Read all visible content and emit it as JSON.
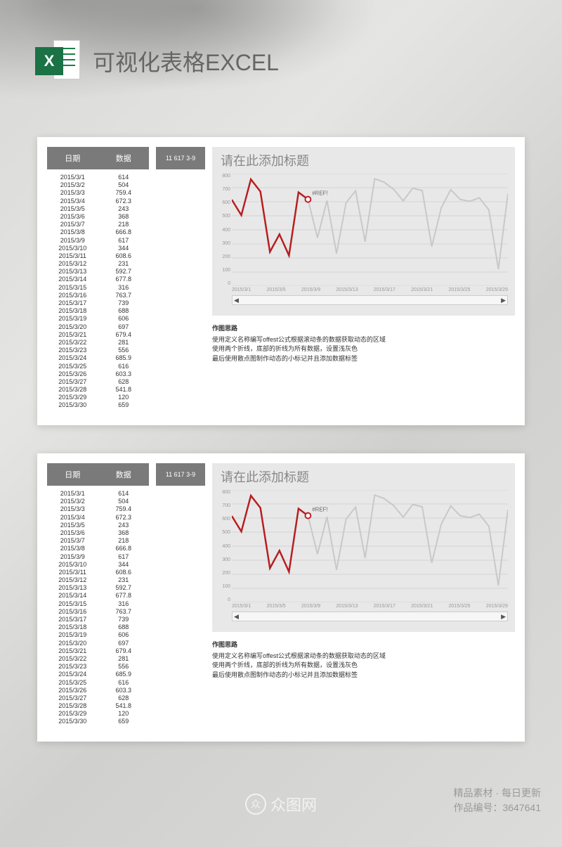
{
  "page_title": "可视化表格EXCEL",
  "excel_icon_letter": "X",
  "table": {
    "headers": {
      "date": "日期",
      "value": "数据"
    },
    "rows": [
      {
        "date": "2015/3/1",
        "value": "614"
      },
      {
        "date": "2015/3/2",
        "value": "504"
      },
      {
        "date": "2015/3/3",
        "value": "759.4"
      },
      {
        "date": "2015/3/4",
        "value": "672.3"
      },
      {
        "date": "2015/3/5",
        "value": "243"
      },
      {
        "date": "2015/3/6",
        "value": "368"
      },
      {
        "date": "2015/3/7",
        "value": "218"
      },
      {
        "date": "2015/3/8",
        "value": "666.8"
      },
      {
        "date": "2015/3/9",
        "value": "617"
      },
      {
        "date": "2015/3/10",
        "value": "344"
      },
      {
        "date": "2015/3/11",
        "value": "608.6"
      },
      {
        "date": "2015/3/12",
        "value": "231"
      },
      {
        "date": "2015/3/13",
        "value": "592.7"
      },
      {
        "date": "2015/3/14",
        "value": "677.8"
      },
      {
        "date": "2015/3/15",
        "value": "316"
      },
      {
        "date": "2015/3/16",
        "value": "763.7"
      },
      {
        "date": "2015/3/17",
        "value": "739"
      },
      {
        "date": "2015/3/18",
        "value": "688"
      },
      {
        "date": "2015/3/19",
        "value": "606"
      },
      {
        "date": "2015/3/20",
        "value": "697"
      },
      {
        "date": "2015/3/21",
        "value": "679.4"
      },
      {
        "date": "2015/3/22",
        "value": "281"
      },
      {
        "date": "2015/3/23",
        "value": "556"
      },
      {
        "date": "2015/3/24",
        "value": "685.9"
      },
      {
        "date": "2015/3/25",
        "value": "616"
      },
      {
        "date": "2015/3/26",
        "value": "603.3"
      },
      {
        "date": "2015/3/27",
        "value": "628"
      },
      {
        "date": "2015/3/28",
        "value": "541.8"
      },
      {
        "date": "2015/3/29",
        "value": "120"
      },
      {
        "date": "2015/3/30",
        "value": "659"
      }
    ]
  },
  "info_badge": "11  617  3-9",
  "chart": {
    "title": "请在此添加标题",
    "type": "line",
    "lines": {
      "highlight": {
        "color": "#b81d1f",
        "width": 2.5,
        "range_end_index": 8
      },
      "background": {
        "color": "#c8c8c8",
        "width": 2
      }
    },
    "marker": {
      "label": "#REF!",
      "index": 8,
      "fill": "#ffffff",
      "stroke": "#b81d1f",
      "radius": 4
    },
    "background_color": "#e8e8e8",
    "grid_color": "#d4d4d4",
    "ylim": [
      0,
      800
    ],
    "ytick_step": 100,
    "yticks": [
      "800",
      "700",
      "600",
      "500",
      "400",
      "300",
      "200",
      "100",
      "0"
    ],
    "xticks": [
      "2015/3/1",
      "2015/3/5",
      "2015/3/9",
      "2015/3/13",
      "2015/3/17",
      "2015/3/21",
      "2015/3/25",
      "2015/3/29"
    ],
    "label_fontsize": 7,
    "label_color": "#999999",
    "title_fontsize": 18,
    "title_color": "#888888",
    "values": [
      614,
      504,
      759.4,
      672.3,
      243,
      368,
      218,
      666.8,
      617,
      344,
      608.6,
      231,
      592.7,
      677.8,
      316,
      763.7,
      739,
      688,
      606,
      697,
      679.4,
      281,
      556,
      685.9,
      616,
      603.3,
      628,
      541.8,
      120,
      659
    ]
  },
  "notes": {
    "heading": "作图思路",
    "lines": [
      "使用定义名称编写offest公式根据滚动条的数据获取动态的区域",
      "使用两个折线，底部的折线为所有数据，设置浅灰色",
      "最后使用散点图制作动态的小标记并且添加数据标签"
    ]
  },
  "watermark": {
    "logo_text": "众",
    "text": "众图网"
  },
  "footer_right": {
    "line1": "精品素材 · 每日更新",
    "line2": "作品编号：3647641"
  },
  "scroll": {
    "left": "◀",
    "right": "▶"
  }
}
